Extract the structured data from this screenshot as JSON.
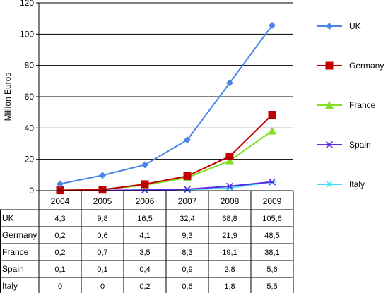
{
  "chart_data": {
    "type": "line",
    "ylabel": "Million Euros",
    "ylim": [
      0,
      120
    ],
    "yticks": [
      0,
      20,
      40,
      60,
      80,
      100,
      120
    ],
    "categories": [
      "2004",
      "2005",
      "2006",
      "2007",
      "2008",
      "2009"
    ],
    "grid": "horizontal",
    "legend_position": "right",
    "has_data_table": true,
    "series": [
      {
        "name": "UK",
        "color": "#4a86e8",
        "marker": "diamond",
        "values": [
          4.3,
          9.8,
          16.5,
          32.4,
          68.8,
          105.6
        ],
        "labels": [
          "4,3",
          "9,8",
          "16,5",
          "32,4",
          "68,8",
          "105,6"
        ]
      },
      {
        "name": "Germany",
        "color": "#c00000",
        "marker": "square",
        "values": [
          0.2,
          0.6,
          4.1,
          9.3,
          21.9,
          48.5
        ],
        "labels": [
          "0,2",
          "0,6",
          "4,1",
          "9,3",
          "21,9",
          "48,5"
        ]
      },
      {
        "name": "France",
        "color": "#80e020",
        "marker": "triangle",
        "values": [
          0.2,
          0.7,
          3.5,
          8.3,
          19.1,
          38.1
        ],
        "labels": [
          "0,2",
          "0,7",
          "3,5",
          "8,3",
          "19,1",
          "38,1"
        ]
      },
      {
        "name": "Spain",
        "color": "#5b2be0",
        "marker": "x",
        "values": [
          0.1,
          0.1,
          0.4,
          0.9,
          2.8,
          5.6
        ],
        "labels": [
          "0,1",
          "0,1",
          "0,4",
          "0,9",
          "2,8",
          "5,6"
        ]
      },
      {
        "name": "Italy",
        "color": "#40e0f0",
        "marker": "asterisk",
        "values": [
          0,
          0,
          0.2,
          0.6,
          1.8,
          5.5
        ],
        "labels": [
          "0",
          "0",
          "0,2",
          "0,6",
          "1,8",
          "5,5"
        ]
      }
    ]
  }
}
